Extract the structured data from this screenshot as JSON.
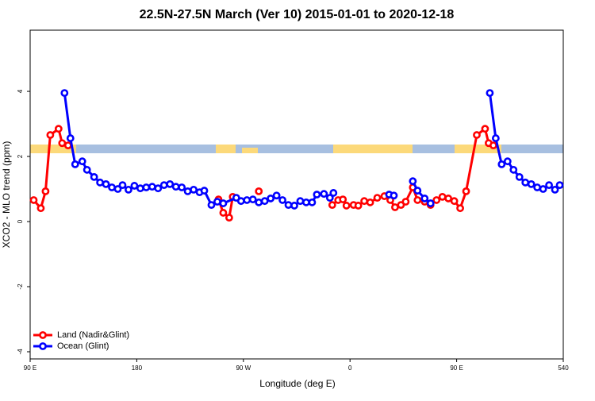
{
  "chart_data": {
    "type": "line",
    "title": "22.5N-27.5N March (Ver 10)   2015-01-01 to 2020-12-18",
    "x_label": "Longitude (deg E)",
    "y_label": "XCO2 - MLO trend (ppm)",
    "xlim": [
      90,
      540
    ],
    "xticks": [
      {
        "value": 90,
        "label": "90 E"
      },
      180,
      {
        "value": 270,
        "label": "90 W"
      },
      {
        "value": 360,
        "label": "0"
      },
      {
        "value": 450,
        "label": "90 E"
      },
      540
    ],
    "ylim": [
      -4.22,
      5.88
    ],
    "yticks": [
      -4,
      -2,
      0,
      2,
      4
    ],
    "legend": "bottom-left",
    "series": [
      {
        "name": "Land (Nadir&Glint)",
        "color": "#ff0000",
        "x": [
          93,
          99,
          103,
          107,
          114,
          117,
          122,
          180,
          249,
          253,
          258,
          261,
          270,
          283,
          310,
          345,
          350,
          354,
          357,
          363,
          367,
          372,
          377,
          383,
          389,
          394,
          398,
          403,
          407,
          413,
          417,
          423,
          428,
          433,
          438,
          443,
          448,
          453,
          458,
          467,
          474,
          477,
          481
        ],
        "values": [
          0.66,
          0.41,
          0.93,
          2.66,
          2.85,
          2.41,
          2.34,
          null,
          0.68,
          0.27,
          0.12,
          0.76,
          null,
          0.93,
          null,
          0.51,
          0.66,
          0.68,
          0.49,
          0.51,
          0.49,
          0.63,
          0.59,
          0.73,
          0.78,
          0.66,
          0.44,
          0.51,
          0.61,
          1.05,
          0.66,
          0.61,
          0.51,
          0.66,
          0.76,
          0.71,
          0.63,
          0.41,
          0.93,
          2.66,
          2.85,
          2.41,
          2.34
        ]
      },
      {
        "name": "Ocean (Glint)",
        "color": "#0000ff",
        "x": [
          119,
          124,
          128,
          134,
          138,
          144,
          149,
          154,
          159,
          164,
          168,
          173,
          178,
          183,
          188,
          193,
          198,
          203,
          208,
          213,
          218,
          223,
          228,
          233,
          237,
          243,
          248,
          253,
          264,
          268,
          273,
          278,
          283,
          288,
          293,
          298,
          303,
          308,
          313,
          318,
          323,
          328,
          332,
          338,
          343,
          346,
          370,
          393,
          397,
          405,
          413,
          417,
          423,
          428,
          450,
          478,
          483,
          488,
          493,
          498,
          503,
          508,
          513,
          518,
          523,
          528,
          533,
          537
        ],
        "values": [
          3.95,
          2.56,
          1.76,
          1.85,
          1.59,
          1.37,
          1.2,
          1.15,
          1.05,
          1.0,
          1.12,
          0.98,
          1.1,
          1.02,
          1.05,
          1.07,
          1.02,
          1.12,
          1.15,
          1.07,
          1.05,
          0.93,
          0.98,
          0.9,
          0.95,
          0.51,
          0.61,
          0.56,
          0.73,
          0.63,
          0.66,
          0.68,
          0.59,
          0.63,
          0.71,
          0.8,
          0.66,
          0.51,
          0.49,
          0.63,
          0.59,
          0.59,
          0.83,
          0.85,
          0.73,
          0.88,
          null,
          0.83,
          0.8,
          null,
          1.24,
          0.95,
          0.71,
          0.56,
          null,
          3.95,
          2.56,
          1.76,
          1.85,
          1.59,
          1.37,
          1.2,
          1.15,
          1.05,
          1.0,
          1.12,
          0.98,
          1.12
        ]
      }
    ]
  }
}
